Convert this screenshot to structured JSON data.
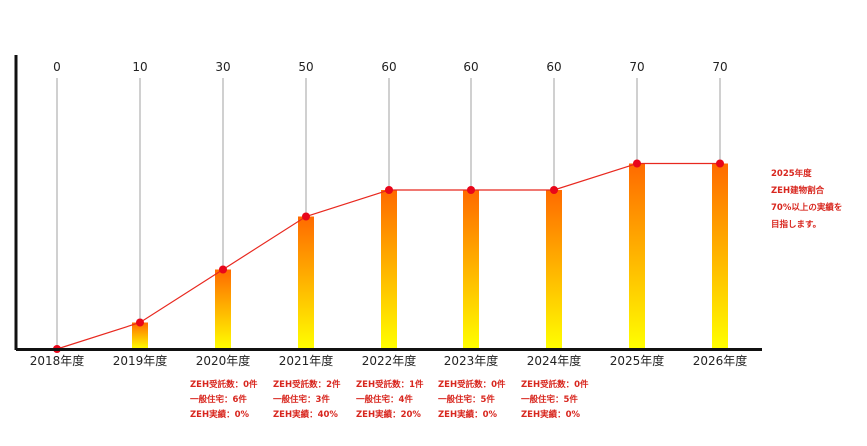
{
  "chart_data": {
    "type": "bar",
    "categories": [
      "2018年度",
      "2019年度",
      "2020年度",
      "2021年度",
      "2022年度",
      "2023年度",
      "2024年度",
      "2025年度",
      "2026年度"
    ],
    "values": [
      0,
      10,
      30,
      50,
      60,
      60,
      60,
      70,
      70
    ],
    "ylim": [
      0,
      100
    ],
    "grid": false,
    "legend": "none",
    "overlay": "line-with-markers",
    "colors": {
      "bar_top": "#ff6a00",
      "bar_bottom": "#ffff00",
      "line": "#e8281f",
      "marker": "#e8061a",
      "drop_line": "#b0b0b0",
      "axis": "#111111"
    }
  },
  "annotations": [
    {
      "category": "2020年度",
      "lines": [
        "ZEH受託数：0件",
        "一般住宅：6件",
        "ZEH実績：0%"
      ]
    },
    {
      "category": "2021年度",
      "lines": [
        "ZEH受託数：2件",
        "一般住宅：3件",
        "ZEH実績：40%"
      ]
    },
    {
      "category": "2022年度",
      "lines": [
        "ZEH受託数：1件",
        "一般住宅：4件",
        "ZEH実績：20%"
      ]
    },
    {
      "category": "2023年度",
      "lines": [
        "ZEH受託数：0件",
        "一般住宅：5件",
        "ZEH実績：0%"
      ]
    },
    {
      "category": "2024年度",
      "lines": [
        "ZEH受託数：0件",
        "一般住宅：5件",
        "ZEH実績：0%"
      ]
    }
  ],
  "side_note": [
    "2025年度",
    "ZEH建物割合",
    "70%以上の実績を",
    "目指します。"
  ]
}
